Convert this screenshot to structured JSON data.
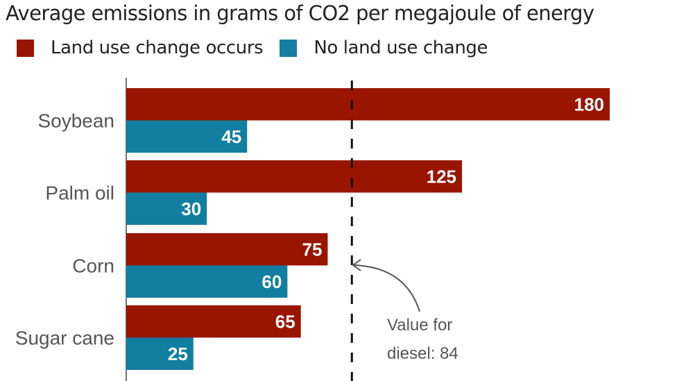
{
  "chart_data": {
    "type": "bar",
    "orientation": "horizontal",
    "title": "Average emissions in grams of CO2 per megajoule of energy",
    "categories": [
      "Soybean",
      "Palm oil",
      "Corn",
      "Sugar cane"
    ],
    "series": [
      {
        "name": "Land use change occurs",
        "color": "#991500",
        "values": [
          180,
          125,
          75,
          65
        ]
      },
      {
        "name": "No land use change",
        "color": "#127fa0",
        "values": [
          45,
          30,
          60,
          25
        ]
      }
    ],
    "reference_line": {
      "value": 84,
      "label_line1": "Value for",
      "label_line2": "diesel: 84",
      "style": "dashed"
    },
    "xlim": [
      0,
      180
    ],
    "xlabel": "",
    "ylabel": "",
    "grid": false,
    "legend_position": "top-left"
  }
}
